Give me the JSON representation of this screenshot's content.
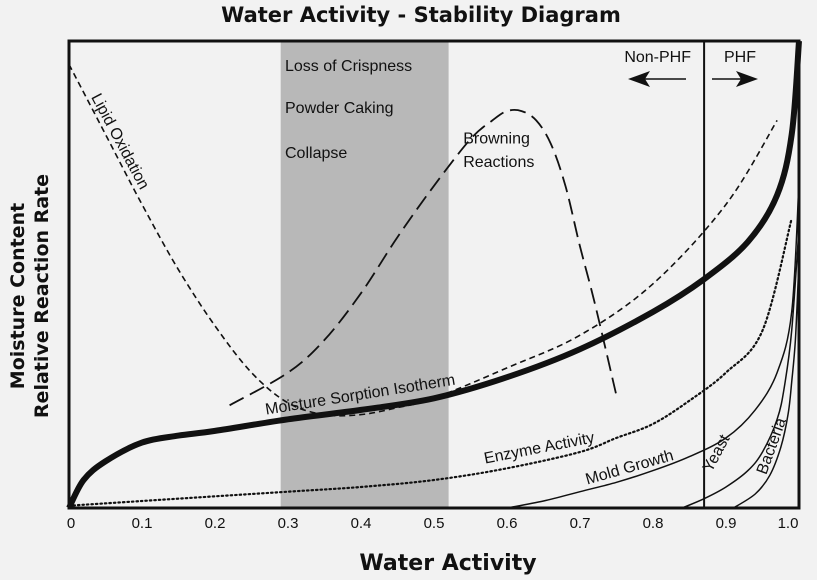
{
  "chart_data": {
    "type": "line",
    "title": "Water Activity - Stability Diagram",
    "xlabel": "Water Activity",
    "ylabel_lines": [
      "Moisture Content",
      "Relative Reaction Rate"
    ],
    "xlim": [
      0,
      1.0
    ],
    "ylim": [
      0,
      1
    ],
    "x_ticks": [
      "0",
      "0.1",
      "0.2",
      "0.3",
      "0.4",
      "0.5",
      "0.6",
      "0.7",
      "0.8",
      "0.9",
      "1.0"
    ],
    "y_ticks_shown": false,
    "grid": false,
    "shaded_region": {
      "x_range": [
        0.29,
        0.52
      ],
      "labels": [
        "Loss of Crispness",
        "Powder Caking",
        "Collapse"
      ],
      "color": "#b8b8b8"
    },
    "boundary": {
      "x": 0.87,
      "left_label": "Non-PHF",
      "right_label": "PHF"
    },
    "series": [
      {
        "name": "Moisture Sorption Isotherm",
        "style": "thick",
        "x": [
          0.0,
          0.02,
          0.05,
          0.1,
          0.15,
          0.2,
          0.3,
          0.4,
          0.5,
          0.6,
          0.7,
          0.8,
          0.87,
          0.93,
          0.97,
          0.99,
          1.0
        ],
        "y": [
          0.0,
          0.06,
          0.1,
          0.14,
          0.155,
          0.165,
          0.19,
          0.21,
          0.235,
          0.28,
          0.34,
          0.42,
          0.49,
          0.57,
          0.67,
          0.8,
          1.0
        ]
      },
      {
        "name": "Lipid Oxidation",
        "style": "dashed",
        "x": [
          0.0,
          0.05,
          0.1,
          0.15,
          0.2,
          0.25,
          0.3,
          0.35,
          0.4,
          0.45,
          0.5,
          0.6,
          0.7,
          0.8,
          0.9,
          0.97
        ],
        "y": [
          0.95,
          0.8,
          0.65,
          0.51,
          0.39,
          0.29,
          0.225,
          0.2,
          0.2,
          0.215,
          0.235,
          0.3,
          0.37,
          0.48,
          0.65,
          0.83
        ]
      },
      {
        "name": "Browning Reactions",
        "style": "longdash",
        "x": [
          0.22,
          0.3,
          0.35,
          0.4,
          0.45,
          0.5,
          0.55,
          0.58,
          0.6,
          0.62,
          0.64,
          0.66,
          0.68,
          0.7,
          0.72,
          0.75
        ],
        "y": [
          0.22,
          0.29,
          0.36,
          0.46,
          0.58,
          0.69,
          0.79,
          0.83,
          0.85,
          0.85,
          0.83,
          0.78,
          0.69,
          0.56,
          0.44,
          0.24
        ]
      },
      {
        "name": "Enzyme Activity",
        "style": "dotted",
        "x": [
          0.0,
          0.1,
          0.2,
          0.3,
          0.4,
          0.5,
          0.6,
          0.7,
          0.75,
          0.8,
          0.85,
          0.9,
          0.95,
          0.99
        ],
        "y": [
          0.005,
          0.015,
          0.025,
          0.035,
          0.045,
          0.06,
          0.085,
          0.12,
          0.15,
          0.18,
          0.23,
          0.29,
          0.38,
          0.62
        ]
      },
      {
        "name": "Mold Growth",
        "style": "solid",
        "x": [
          0.6,
          0.65,
          0.7,
          0.75,
          0.8,
          0.85,
          0.9,
          0.94,
          0.97,
          0.99,
          1.0
        ],
        "y": [
          0.0,
          0.015,
          0.035,
          0.055,
          0.08,
          0.11,
          0.15,
          0.21,
          0.29,
          0.42,
          0.7
        ]
      },
      {
        "name": "Yeast",
        "style": "solid",
        "x": [
          0.84,
          0.87,
          0.9,
          0.93,
          0.95,
          0.97,
          0.98,
          0.99,
          1.0
        ],
        "y": [
          0.0,
          0.02,
          0.045,
          0.08,
          0.12,
          0.19,
          0.26,
          0.38,
          0.6
        ]
      },
      {
        "name": "Bacteria",
        "style": "solid",
        "x": [
          0.91,
          0.94,
          0.96,
          0.975,
          0.985,
          0.99,
          0.995,
          1.0
        ],
        "y": [
          0.0,
          0.03,
          0.07,
          0.13,
          0.2,
          0.27,
          0.36,
          0.53
        ]
      }
    ],
    "annotations": [
      {
        "text": "Lipid Oxidation",
        "x": 0.03,
        "y": 0.88,
        "rotate": 62
      },
      {
        "text": "Browning",
        "x": 0.54,
        "y": 0.78,
        "rotate": 0
      },
      {
        "text": "Reactions",
        "x": 0.54,
        "y": 0.73,
        "rotate": 0
      },
      {
        "text": "Moisture Sorption Isotherm",
        "x": 0.27,
        "y": 0.2,
        "rotate": -9
      },
      {
        "text": "Enzyme Activity",
        "x": 0.57,
        "y": 0.095,
        "rotate": -11
      },
      {
        "text": "Mold Growth",
        "x": 0.71,
        "y": 0.05,
        "rotate": -16
      },
      {
        "text": "Yeast",
        "x": 0.88,
        "y": 0.075,
        "rotate": -62
      },
      {
        "text": "Bacteria",
        "x": 0.955,
        "y": 0.07,
        "rotate": -70
      }
    ]
  }
}
